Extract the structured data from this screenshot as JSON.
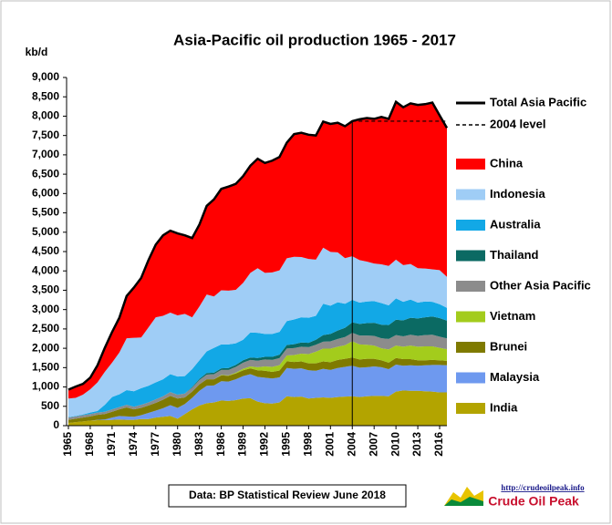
{
  "chart_data": {
    "type": "stacked_area",
    "title": "Asia-Pacific oil production  1965 - 2017",
    "y_label": "kb/d",
    "source": "Data: BP Statistical Review  June 2018",
    "logo_url": "http://crudeoilpeak.info",
    "logo_name": "Crude Oil Peak",
    "x": [
      1965,
      1966,
      1967,
      1968,
      1969,
      1970,
      1971,
      1972,
      1973,
      1974,
      1975,
      1976,
      1977,
      1978,
      1979,
      1980,
      1981,
      1982,
      1983,
      1984,
      1985,
      1986,
      1987,
      1988,
      1989,
      1990,
      1991,
      1992,
      1993,
      1994,
      1995,
      1996,
      1997,
      1998,
      1999,
      2000,
      2001,
      2002,
      2003,
      2004,
      2005,
      2006,
      2007,
      2008,
      2009,
      2010,
      2011,
      2012,
      2013,
      2014,
      2015,
      2016,
      2017
    ],
    "xlim": [
      1965,
      2017
    ],
    "xticks": [
      1965,
      1968,
      1971,
      1974,
      1977,
      1980,
      1983,
      1986,
      1989,
      1992,
      1995,
      1998,
      2001,
      2004,
      2007,
      2010,
      2013,
      2016
    ],
    "ylim": [
      0,
      9000
    ],
    "yticks": [
      0,
      {
        "value": 500,
        "label": "500"
      },
      {
        "value": 1000,
        "label": "1,000"
      },
      {
        "value": 1500,
        "label": "1,500"
      },
      {
        "value": 2000,
        "label": "2,000"
      },
      {
        "value": 2500,
        "label": "2,500"
      },
      {
        "value": 3000,
        "label": "3,000"
      },
      {
        "value": 3500,
        "label": "3,500"
      },
      {
        "value": 4000,
        "label": "4,000"
      },
      {
        "value": 4500,
        "label": "4,500"
      },
      {
        "value": 5000,
        "label": "5,000"
      },
      {
        "value": 5500,
        "label": "5,500"
      },
      {
        "value": 6000,
        "label": "6,000"
      },
      {
        "value": 6500,
        "label": "6,500"
      },
      {
        "value": 7000,
        "label": "7,000"
      },
      {
        "value": 7500,
        "label": "7,500"
      },
      {
        "value": 8000,
        "label": "8,000"
      },
      {
        "value": 8500,
        "label": "8,500"
      },
      {
        "value": 9000,
        "label": "9,000"
      }
    ],
    "total": {
      "name": "Total Asia Pacific",
      "color": "#000000"
    },
    "reference_line": {
      "name": "2004 level",
      "value": 7870,
      "x": 2004,
      "color": "#000000"
    },
    "series": [
      {
        "name": "India",
        "color": "#b3a400",
        "values": [
          70,
          90,
          110,
          130,
          140,
          140,
          150,
          160,
          150,
          150,
          170,
          170,
          210,
          230,
          250,
          180,
          300,
          420,
          520,
          580,
          600,
          650,
          640,
          660,
          700,
          710,
          620,
          580,
          570,
          600,
          760,
          740,
          750,
          700,
          720,
          730,
          720,
          740,
          750,
          760,
          740,
          760,
          770,
          770,
          760,
          880,
          910,
          900,
          900,
          890,
          880,
          860,
          860
        ]
      },
      {
        "name": "Malaysia",
        "color": "#6e99ef",
        "values": [
          0,
          0,
          0,
          0,
          10,
          20,
          60,
          90,
          90,
          80,
          100,
          160,
          180,
          220,
          280,
          280,
          260,
          300,
          380,
          450,
          440,
          500,
          500,
          540,
          580,
          620,
          640,
          660,
          650,
          650,
          730,
          730,
          730,
          730,
          700,
          740,
          720,
          750,
          770,
          790,
          760,
          750,
          760,
          740,
          700,
          700,
          640,
          660,
          650,
          670,
          690,
          710,
          700
        ]
      },
      {
        "name": "Brunei",
        "color": "#7f7a00",
        "values": [
          80,
          90,
          100,
          110,
          130,
          140,
          150,
          170,
          230,
          190,
          190,
          190,
          200,
          220,
          240,
          240,
          170,
          160,
          170,
          170,
          160,
          150,
          150,
          150,
          150,
          150,
          170,
          180,
          170,
          175,
          175,
          175,
          180,
          180,
          190,
          190,
          200,
          210,
          210,
          210,
          210,
          220,
          200,
          180,
          170,
          170,
          170,
          160,
          140,
          130,
          130,
          120,
          115
        ]
      },
      {
        "name": "Vietnam",
        "color": "#a3cc1c",
        "values": [
          0,
          0,
          0,
          0,
          0,
          0,
          0,
          0,
          0,
          0,
          0,
          0,
          0,
          0,
          0,
          0,
          0,
          0,
          0,
          0,
          0,
          10,
          10,
          20,
          40,
          50,
          80,
          110,
          130,
          140,
          150,
          180,
          200,
          240,
          300,
          330,
          350,
          340,
          350,
          420,
          390,
          360,
          340,
          310,
          340,
          320,
          320,
          350,
          350,
          360,
          350,
          320,
          300
        ]
      },
      {
        "name": "Other Asia Pacific",
        "color": "#8c8c8c",
        "values": [
          60,
          60,
          60,
          60,
          60,
          60,
          60,
          60,
          70,
          70,
          80,
          80,
          90,
          90,
          100,
          100,
          100,
          100,
          110,
          120,
          130,
          130,
          140,
          150,
          160,
          170,
          170,
          180,
          180,
          180,
          180,
          180,
          180,
          180,
          180,
          180,
          190,
          200,
          210,
          220,
          230,
          240,
          250,
          260,
          270,
          270,
          270,
          280,
          280,
          290,
          300,
          290,
          280
        ]
      },
      {
        "name": "Thailand",
        "color": "#0b6a63",
        "values": [
          0,
          0,
          0,
          0,
          0,
          0,
          0,
          0,
          0,
          0,
          0,
          0,
          0,
          0,
          0,
          0,
          0,
          20,
          30,
          40,
          40,
          40,
          50,
          50,
          60,
          60,
          70,
          70,
          80,
          90,
          90,
          100,
          110,
          110,
          130,
          170,
          190,
          220,
          240,
          270,
          300,
          320,
          340,
          350,
          360,
          400,
          410,
          440,
          450,
          460,
          470,
          480,
          460
        ]
      },
      {
        "name": "Australia",
        "color": "#12a8e6",
        "values": [
          10,
          10,
          20,
          40,
          40,
          180,
          320,
          330,
          380,
          400,
          430,
          430,
          440,
          440,
          460,
          470,
          450,
          460,
          480,
          560,
          640,
          620,
          610,
          560,
          530,
          650,
          650,
          590,
          590,
          590,
          620,
          640,
          650,
          650,
          620,
          810,
          730,
          730,
          620,
          580,
          550,
          560,
          560,
          560,
          510,
          550,
          480,
          470,
          410,
          410,
          380,
          360,
          330
        ]
      },
      {
        "name": "Indonesia",
        "color": "#9fcdf6",
        "values": [
          480,
          470,
          510,
          600,
          740,
          850,
          890,
          1080,
          1340,
          1380,
          1310,
          1510,
          1680,
          1640,
          1590,
          1580,
          1610,
          1340,
          1390,
          1470,
          1330,
          1400,
          1390,
          1380,
          1470,
          1540,
          1670,
          1580,
          1590,
          1590,
          1620,
          1620,
          1560,
          1520,
          1450,
          1450,
          1390,
          1290,
          1180,
          1130,
          1100,
          1030,
          970,
          1000,
          1020,
          1000,
          950,
          920,
          890,
          850,
          840,
          880,
          800
        ]
      },
      {
        "name": "China",
        "color": "#ff0000",
        "values": [
          230,
          290,
          280,
          300,
          440,
          620,
          790,
          900,
          1090,
          1300,
          1540,
          1740,
          1880,
          2080,
          2120,
          2120,
          2030,
          2050,
          2120,
          2290,
          2510,
          2620,
          2690,
          2740,
          2760,
          2770,
          2830,
          2840,
          2890,
          2930,
          2990,
          3170,
          3210,
          3210,
          3210,
          3260,
          3310,
          3350,
          3410,
          3490,
          3640,
          3710,
          3740,
          3810,
          3800,
          4080,
          4080,
          4150,
          4220,
          4250,
          4310,
          4000,
          3850
        ]
      }
    ]
  }
}
